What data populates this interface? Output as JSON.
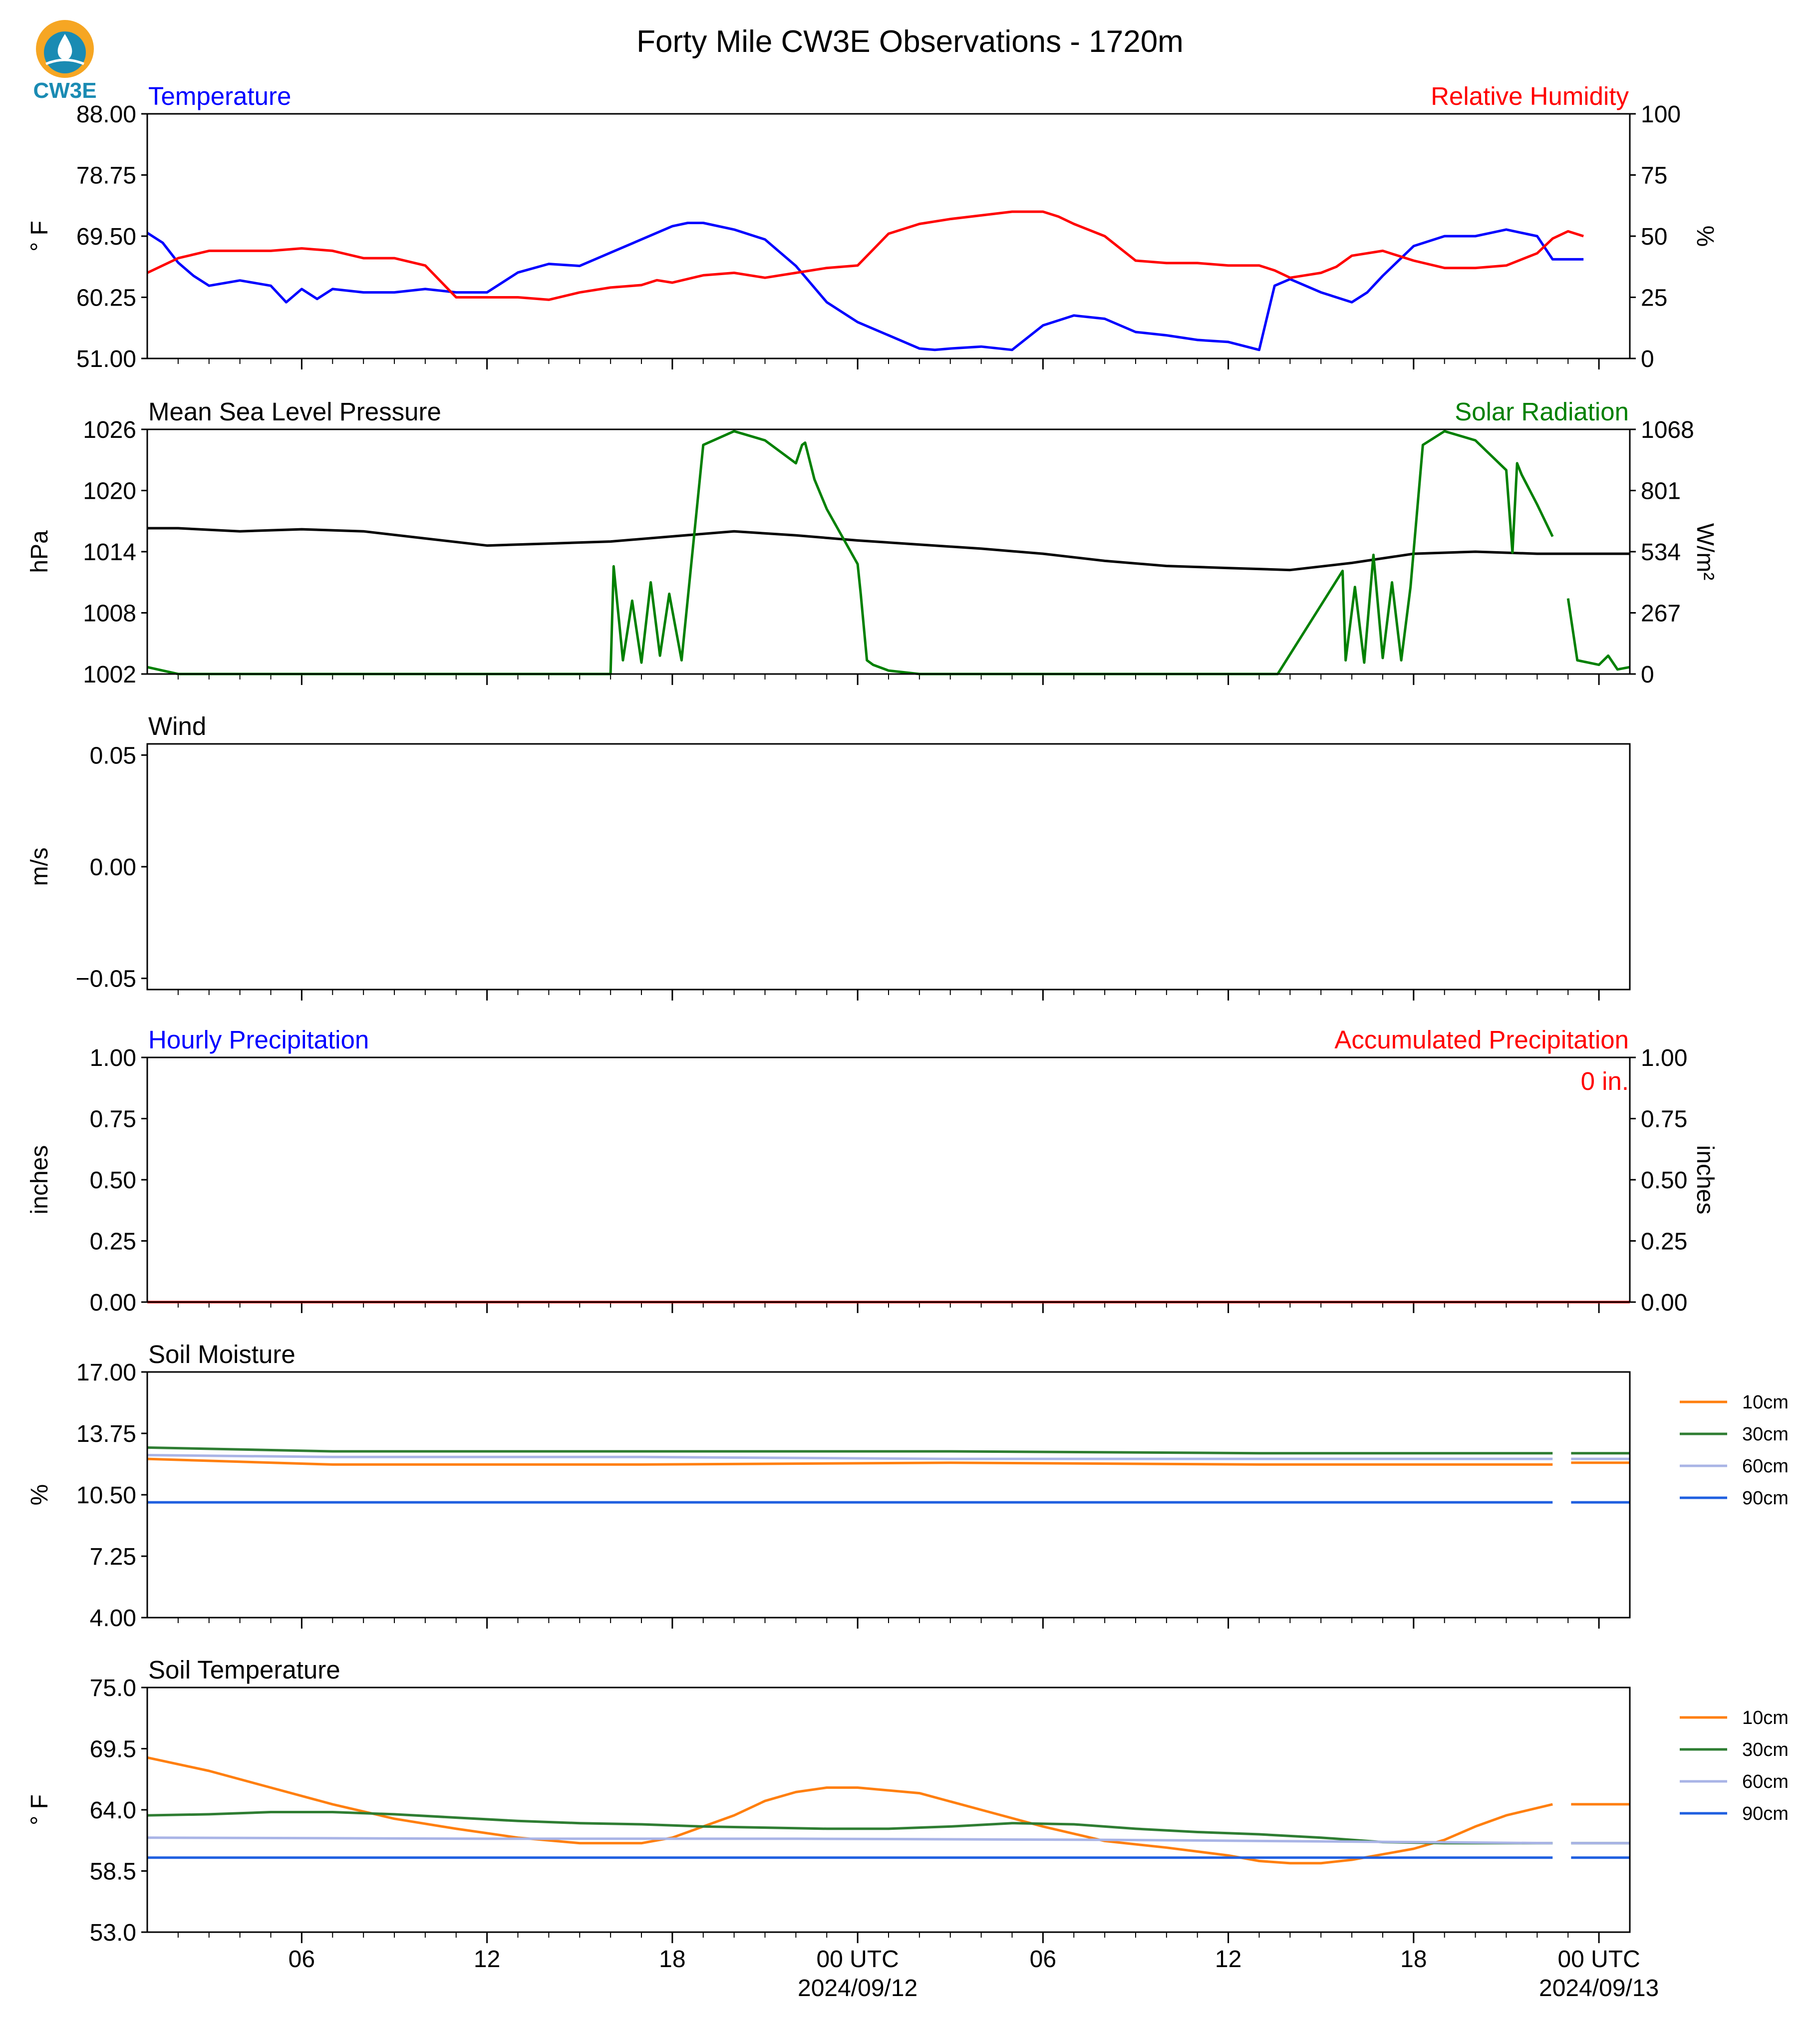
{
  "header": {
    "title": "Forty Mile CW3E Observations - 1720m",
    "logo_text": "CW3E"
  },
  "colors": {
    "temperature": "#0000ff",
    "humidity": "#ff0000",
    "pressure": "#000000",
    "solar": "#008000",
    "accum": "#ff0000",
    "hourly": "#0000ff",
    "soil_10cm": "#ff7f0e",
    "soil_30cm": "#2e7d32",
    "soil_60cm": "#a9b4e6",
    "soil_90cm": "#1f5fe0",
    "logo_orange": "#f6a623",
    "logo_teal": "#1a8bb3"
  },
  "x_axis": {
    "hours_range": [
      -1,
      47
    ],
    "ticks": [
      {
        "h": 4,
        "label": "06"
      },
      {
        "h": 10,
        "label": "12"
      },
      {
        "h": 16,
        "label": "18"
      },
      {
        "h": 22,
        "label": "00 UTC",
        "date": "2024/09/12"
      },
      {
        "h": 28,
        "label": "06"
      },
      {
        "h": 34,
        "label": "12"
      },
      {
        "h": 40,
        "label": "18"
      },
      {
        "h": 46,
        "label": "00 UTC",
        "date": "2024/09/13"
      }
    ]
  },
  "chart_data": [
    {
      "id": "temp_rh",
      "type": "line",
      "title_left": "Temperature",
      "title_right": "Relative Humidity",
      "ylabel_left": "° F",
      "ylabel_right": "%",
      "ylim_left": [
        51,
        88
      ],
      "ylim_right": [
        0,
        100
      ],
      "yticks_left": [
        "51.00",
        "60.25",
        "69.50",
        "78.75",
        "88.00"
      ],
      "yticks_right": [
        "0",
        "25",
        "50",
        "75",
        "100"
      ],
      "series": [
        {
          "name": "Temperature",
          "axis": "left",
          "color_key": "temperature",
          "x": [
            -1,
            -0.5,
            0,
            0.5,
            1,
            2,
            3,
            3.5,
            4,
            4.5,
            5,
            6,
            7,
            8,
            9,
            10,
            11,
            12,
            13,
            14,
            15,
            16,
            16.5,
            17,
            18,
            19,
            19.5,
            20,
            21,
            22,
            23,
            24,
            24.5,
            25,
            26,
            27,
            28,
            29,
            30,
            31,
            32,
            33,
            34,
            35,
            35.5,
            36,
            37,
            38,
            38.5,
            39,
            40,
            41,
            42,
            42.5,
            43,
            44,
            44.5,
            45.5,
            46,
            47
          ],
          "y": [
            70.0,
            68.5,
            65.5,
            63.5,
            62.0,
            62.8,
            62.0,
            59.5,
            61.5,
            60.0,
            61.5,
            61.0,
            61.0,
            61.5,
            61.0,
            61.0,
            64.0,
            65.3,
            65.0,
            67.0,
            69.0,
            71.0,
            71.5,
            71.5,
            70.5,
            69.0,
            67.0,
            65.0,
            59.5,
            56.5,
            54.5,
            52.5,
            52.3,
            52.5,
            52.8,
            52.3,
            56.0,
            57.5,
            57.0,
            55.0,
            54.5,
            53.8,
            53.5,
            52.3,
            62.0,
            63.0,
            61.0,
            59.5,
            61.0,
            63.5,
            68.0,
            69.5,
            69.5,
            70.0,
            70.5,
            69.5,
            66.0,
            66.0,
            null,
            62.0
          ]
        },
        {
          "name": "Relative Humidity",
          "axis": "right",
          "color_key": "humidity",
          "x": [
            -1,
            0,
            1,
            2,
            3,
            4,
            5,
            6,
            7,
            8,
            9,
            10,
            11,
            12,
            13,
            14,
            15,
            15.5,
            16,
            17,
            18,
            19,
            20,
            21,
            22,
            23,
            24,
            25,
            26,
            27,
            28,
            28.5,
            29,
            30,
            31,
            32,
            33,
            34,
            35,
            35.5,
            36,
            37,
            37.5,
            38,
            39,
            40,
            41,
            42,
            43,
            44,
            44.5,
            45,
            45.5,
            46,
            47
          ],
          "y": [
            35,
            41,
            44,
            44,
            44,
            45,
            44,
            41,
            41,
            38,
            25,
            25,
            25,
            24,
            27,
            29,
            30,
            32,
            31,
            34,
            35,
            33,
            35,
            37,
            38,
            51,
            55,
            57,
            58.5,
            60,
            60,
            58,
            55,
            50,
            40,
            39,
            39,
            38,
            38,
            36,
            33,
            35,
            37.5,
            42,
            44,
            40,
            37,
            37,
            38,
            43,
            49,
            52,
            50,
            null,
            53
          ]
        }
      ]
    },
    {
      "id": "pressure_solar",
      "type": "line",
      "title_left": "Mean Sea Level Pressure",
      "title_right": "Solar Radiation",
      "ylabel_left": "hPa",
      "ylabel_right": "W/m²",
      "ylim_left": [
        1002,
        1026
      ],
      "ylim_right": [
        0,
        1068
      ],
      "yticks_left": [
        "1002",
        "1008",
        "1014",
        "1020",
        "1026"
      ],
      "yticks_right": [
        "0",
        "267",
        "534",
        "801",
        "1068"
      ],
      "series": [
        {
          "name": "Mean Sea Level Pressure",
          "axis": "left",
          "color_key": "pressure",
          "x": [
            -1,
            0,
            2,
            4,
            6,
            8,
            10,
            12,
            14,
            16,
            18,
            20,
            22,
            24,
            26,
            28,
            30,
            32,
            34,
            36,
            38,
            40,
            42,
            44,
            46,
            47
          ],
          "y": [
            1016.3,
            1016.3,
            1016.0,
            1016.2,
            1016.0,
            1015.3,
            1014.6,
            1014.8,
            1015.0,
            1015.5,
            1016.0,
            1015.6,
            1015.1,
            1014.7,
            1014.3,
            1013.8,
            1013.1,
            1012.6,
            1012.4,
            1012.2,
            1012.9,
            1013.8,
            1014.0,
            1013.8,
            1013.8,
            1013.8
          ]
        },
        {
          "name": "Solar Radiation",
          "axis": "right",
          "color_key": "solar",
          "x": [
            -1,
            0,
            1,
            5,
            10,
            12,
            14,
            14.1,
            14.4,
            14.7,
            15,
            15.3,
            15.6,
            15.9,
            16.3,
            17,
            18,
            19,
            20,
            20.2,
            20.3,
            20.6,
            21,
            22,
            22.1,
            22.3,
            22.5,
            23,
            24,
            28,
            34,
            35.6,
            37.7,
            37.8,
            38.1,
            38.4,
            38.7,
            39,
            39.3,
            39.6,
            39.9,
            40.3,
            41,
            42,
            43,
            43.2,
            43.35,
            43.5,
            44,
            44.5,
            null,
            45,
            45.3,
            46,
            46.3,
            46.6,
            47
          ],
          "y": [
            30,
            0,
            0,
            0,
            0,
            0,
            0,
            470,
            60,
            320,
            50,
            400,
            80,
            350,
            60,
            1000,
            1060,
            1020,
            920,
            1000,
            1010,
            850,
            720,
            480,
            350,
            60,
            40,
            15,
            0,
            0,
            0,
            0,
            450,
            60,
            380,
            50,
            520,
            70,
            400,
            60,
            380,
            1000,
            1060,
            1020,
            890,
            530,
            920,
            870,
            740,
            600,
            null,
            330,
            60,
            40,
            80,
            20,
            30
          ]
        }
      ]
    },
    {
      "id": "wind",
      "type": "line",
      "title_left": "Wind",
      "ylabel_left": "m/s",
      "ylim_left": [
        -0.055,
        0.055
      ],
      "yticks_left": [
        "−0.05",
        "0.00",
        "0.05"
      ],
      "series": []
    },
    {
      "id": "precip",
      "type": "line",
      "title_left": "Hourly Precipitation",
      "title_right": "Accumulated Precipitation",
      "ylabel_left": "inches",
      "ylabel_right": "inches",
      "ylim_left": [
        0,
        1
      ],
      "ylim_right": [
        0,
        1
      ],
      "yticks_left": [
        "0.00",
        "0.25",
        "0.50",
        "0.75",
        "1.00"
      ],
      "yticks_right": [
        "0.00",
        "0.25",
        "0.50",
        "0.75",
        "1.00"
      ],
      "annotation": "0 in.",
      "series": [
        {
          "name": "Accumulated Precipitation",
          "axis": "left",
          "color_key": "accum",
          "x": [
            -1,
            47
          ],
          "y": [
            0,
            0
          ]
        }
      ]
    },
    {
      "id": "soil_moisture",
      "type": "line",
      "title_left": "Soil Moisture",
      "ylabel_left": "%",
      "ylim_left": [
        4,
        17
      ],
      "yticks_left": [
        "4.00",
        "7.25",
        "10.50",
        "13.75",
        "17.00"
      ],
      "legend": [
        "10cm",
        "30cm",
        "60cm",
        "90cm"
      ],
      "series": [
        {
          "name": "10cm",
          "color_key": "soil_10cm",
          "x": [
            -1,
            5,
            15,
            25,
            35,
            44.5,
            null,
            45.1,
            47
          ],
          "y": [
            12.4,
            12.1,
            12.1,
            12.2,
            12.1,
            12.1,
            null,
            12.2,
            12.2
          ]
        },
        {
          "name": "30cm",
          "color_key": "soil_30cm",
          "x": [
            -1,
            5,
            15,
            25,
            35,
            44.5,
            null,
            45.1,
            47
          ],
          "y": [
            13.0,
            12.8,
            12.8,
            12.8,
            12.7,
            12.7,
            null,
            12.7,
            12.7
          ]
        },
        {
          "name": "60cm",
          "color_key": "soil_60cm",
          "x": [
            -1,
            5,
            15,
            25,
            35,
            44.5,
            null,
            45.1,
            47
          ],
          "y": [
            12.6,
            12.5,
            12.5,
            12.4,
            12.4,
            12.4,
            null,
            12.4,
            12.4
          ]
        },
        {
          "name": "90cm",
          "color_key": "soil_90cm",
          "x": [
            -1,
            5,
            15,
            25,
            35,
            44.5,
            null,
            45.1,
            47
          ],
          "y": [
            10.1,
            10.1,
            10.1,
            10.1,
            10.1,
            10.1,
            null,
            10.1,
            10.1
          ]
        }
      ]
    },
    {
      "id": "soil_temperature",
      "type": "line",
      "title_left": "Soil Temperature",
      "ylabel_left": "° F",
      "ylim_left": [
        53,
        75
      ],
      "yticks_left": [
        "53.0",
        "58.5",
        "64.0",
        "69.5",
        "75.0"
      ],
      "legend": [
        "10cm",
        "30cm",
        "60cm",
        "90cm"
      ],
      "series": [
        {
          "name": "10cm",
          "color_key": "soil_10cm",
          "x": [
            -1,
            1,
            3,
            5,
            7,
            9,
            11,
            13,
            15,
            16,
            17,
            18,
            19,
            20,
            21,
            22,
            24,
            26,
            28,
            30,
            32,
            34,
            35,
            36,
            37,
            38,
            39,
            40,
            41,
            42,
            43,
            44.5,
            null,
            45.1,
            47
          ],
          "y": [
            68.7,
            67.5,
            66.0,
            64.5,
            63.2,
            62.3,
            61.5,
            61.0,
            61.0,
            61.5,
            62.5,
            63.5,
            64.8,
            65.6,
            66.0,
            66.0,
            65.5,
            64.0,
            62.5,
            61.2,
            60.6,
            59.9,
            59.4,
            59.2,
            59.2,
            59.5,
            60.0,
            60.5,
            61.3,
            62.5,
            63.5,
            64.5,
            null,
            64.5,
            64.5
          ]
        },
        {
          "name": "30cm",
          "color_key": "soil_30cm",
          "x": [
            -1,
            1,
            3,
            5,
            7,
            9,
            11,
            13,
            15,
            17,
            19,
            21,
            23,
            25,
            27,
            29,
            31,
            33,
            35,
            37,
            38,
            39,
            41,
            43,
            44.5,
            null,
            45.1,
            47
          ],
          "y": [
            63.5,
            63.6,
            63.8,
            63.8,
            63.6,
            63.3,
            63.0,
            62.8,
            62.7,
            62.5,
            62.4,
            62.3,
            62.3,
            62.5,
            62.8,
            62.7,
            62.3,
            62.0,
            61.8,
            61.5,
            61.3,
            61.1,
            61.0,
            61.0,
            61.0,
            null,
            61.0,
            61.0
          ]
        },
        {
          "name": "60cm",
          "color_key": "soil_60cm",
          "x": [
            -1,
            10,
            20,
            30,
            40,
            44.5,
            null,
            45.1,
            47
          ],
          "y": [
            61.5,
            61.4,
            61.4,
            61.3,
            61.1,
            61.0,
            null,
            61.0,
            61.0
          ]
        },
        {
          "name": "90cm",
          "color_key": "soil_90cm",
          "x": [
            -1,
            10,
            20,
            30,
            40,
            44.5,
            null,
            45.1,
            47
          ],
          "y": [
            59.7,
            59.7,
            59.7,
            59.7,
            59.7,
            59.7,
            null,
            59.7,
            59.7
          ]
        }
      ]
    }
  ]
}
